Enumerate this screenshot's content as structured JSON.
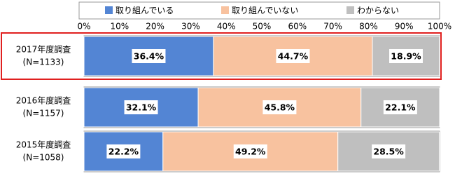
{
  "chart_data": {
    "type": "stacked-bar-horizontal",
    "categories": [
      "2017年度調査",
      "2016年度調査",
      "2015年度調査"
    ],
    "sample_sizes": [
      "(N=1133)",
      "(N=1157)",
      "(N=1058)"
    ],
    "series": [
      {
        "name": "取り組んでいる",
        "color": "#5385d4",
        "values": [
          36.4,
          32.1,
          22.2
        ],
        "value_labels": [
          "36.4%",
          "32.1%",
          "22.2%"
        ]
      },
      {
        "name": "取り組んでいない",
        "color": "#f8c29f",
        "values": [
          44.7,
          45.8,
          49.2
        ],
        "value_labels": [
          "44.7%",
          "45.8%",
          "49.2%"
        ]
      },
      {
        "name": "わからない",
        "color": "#bfbfbf",
        "values": [
          18.9,
          22.1,
          28.5
        ],
        "value_labels": [
          "18.9%",
          "22.1%",
          "28.5%"
        ]
      }
    ],
    "xlim": [
      0,
      100
    ],
    "xticks": [
      {
        "value": 0,
        "label": "0%"
      },
      {
        "value": 10,
        "label": "10%"
      },
      {
        "value": 20,
        "label": "20%"
      },
      {
        "value": 30,
        "label": "30%"
      },
      {
        "value": 40,
        "label": "40%"
      },
      {
        "value": 50,
        "label": "50%"
      },
      {
        "value": 60,
        "label": "60%"
      },
      {
        "value": 70,
        "label": "70%"
      },
      {
        "value": 80,
        "label": "80%"
      },
      {
        "value": 90,
        "label": "90%"
      },
      {
        "value": 100,
        "label": "100%"
      }
    ]
  }
}
